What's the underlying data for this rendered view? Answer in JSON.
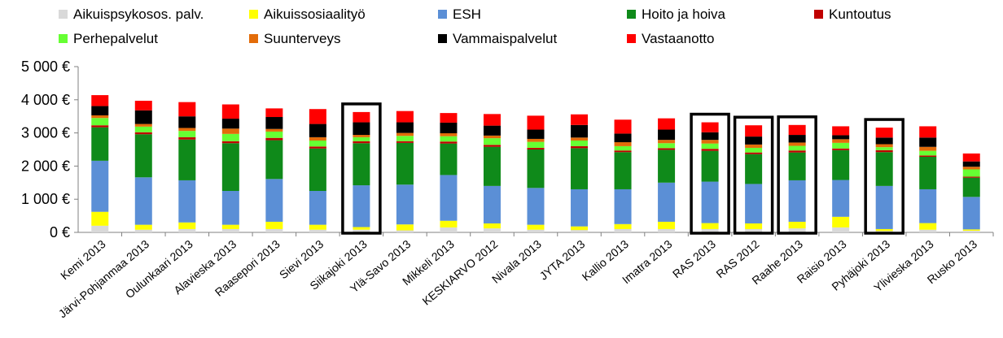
{
  "chart_data": {
    "type": "bar",
    "stacked": true,
    "legend_placement": "top",
    "grid": false,
    "ylim": [
      0,
      5000
    ],
    "yticks": [
      {
        "value": 0,
        "label": "0 €"
      },
      {
        "value": 1000,
        "label": "1 000 €"
      },
      {
        "value": 2000,
        "label": "2 000 €"
      },
      {
        "value": 3000,
        "label": "3 000 €"
      },
      {
        "value": 4000,
        "label": "4 000 €"
      },
      {
        "value": 5000,
        "label": "5 000 €"
      }
    ],
    "categories": [
      "Kemi 2013",
      "Järvi-Pohjanmaa 2013",
      "Oulunkaari 2013",
      "Alavieska 2013",
      "Raasepori 2013",
      "Sievi 2013",
      "Siikajoki 2013",
      "Ylä-Savo 2013",
      "Mikkeli 2013",
      "KESKIARVO 2012",
      "Nivala 2013",
      "JYTA 2013",
      "Kallio 2013",
      "Imatra 2013",
      "RAS 2013",
      "RAS 2012",
      "Raahe 2013",
      "Raisio 2013",
      "Pyhäjoki 2013",
      "Ylivieska 2013",
      "Rusko 2013"
    ],
    "highlighted": [
      "Siikajoki 2013",
      "RAS 2013",
      "RAS 2012",
      "Raahe 2013",
      "Pyhäjoki 2013"
    ],
    "series": [
      {
        "name": "Aikuispsykosos. palv.",
        "color": "#d9d9d9",
        "values": [
          200,
          80,
          100,
          100,
          100,
          80,
          80,
          60,
          150,
          120,
          80,
          70,
          100,
          100,
          100,
          100,
          120,
          150,
          40,
          80,
          50
        ]
      },
      {
        "name": "Aikuissosiaalityö",
        "color": "#ffff00",
        "values": [
          420,
          150,
          200,
          130,
          220,
          150,
          80,
          180,
          200,
          150,
          150,
          110,
          150,
          220,
          180,
          170,
          200,
          320,
          60,
          200,
          40
        ]
      },
      {
        "name": "ESH",
        "color": "#5b8fd6",
        "values": [
          1540,
          1430,
          1270,
          1020,
          1290,
          1020,
          1260,
          1200,
          1380,
          1130,
          1110,
          1120,
          1050,
          1180,
          1250,
          1190,
          1250,
          1110,
          1300,
          1020,
          980
        ]
      },
      {
        "name": "Hoito ja hoiva",
        "color": "#0f8a1a",
        "values": [
          1010,
          1300,
          1230,
          1440,
          1170,
          1280,
          1270,
          1260,
          950,
          1180,
          1160,
          1240,
          1120,
          990,
          930,
          900,
          840,
          900,
          1020,
          980,
          580
        ]
      },
      {
        "name": "Kuntoutus",
        "color": "#c00000",
        "values": [
          60,
          60,
          70,
          60,
          70,
          60,
          60,
          50,
          60,
          60,
          50,
          60,
          50,
          50,
          60,
          50,
          60,
          50,
          60,
          40,
          30
        ]
      },
      {
        "name": "Perhepalvelut",
        "color": "#66ff33",
        "values": [
          220,
          170,
          190,
          220,
          190,
          180,
          120,
          160,
          160,
          200,
          180,
          170,
          130,
          150,
          160,
          140,
          140,
          170,
          90,
          140,
          220
        ]
      },
      {
        "name": "Suunterveys",
        "color": "#e36c09",
        "values": [
          80,
          80,
          90,
          160,
          80,
          100,
          70,
          90,
          90,
          80,
          90,
          90,
          120,
          100,
          110,
          100,
          100,
          110,
          90,
          120,
          80
        ]
      },
      {
        "name": "Vammaispalvelut",
        "color": "#000000",
        "values": [
          280,
          410,
          350,
          300,
          360,
          400,
          380,
          320,
          320,
          300,
          280,
          380,
          260,
          310,
          230,
          240,
          230,
          120,
          200,
          280,
          160
        ]
      },
      {
        "name": "Vastaanotto",
        "color": "#ff0000",
        "values": [
          330,
          290,
          430,
          430,
          260,
          450,
          310,
          340,
          290,
          350,
          420,
          320,
          420,
          340,
          300,
          340,
          300,
          270,
          300,
          340,
          240
        ]
      }
    ]
  }
}
